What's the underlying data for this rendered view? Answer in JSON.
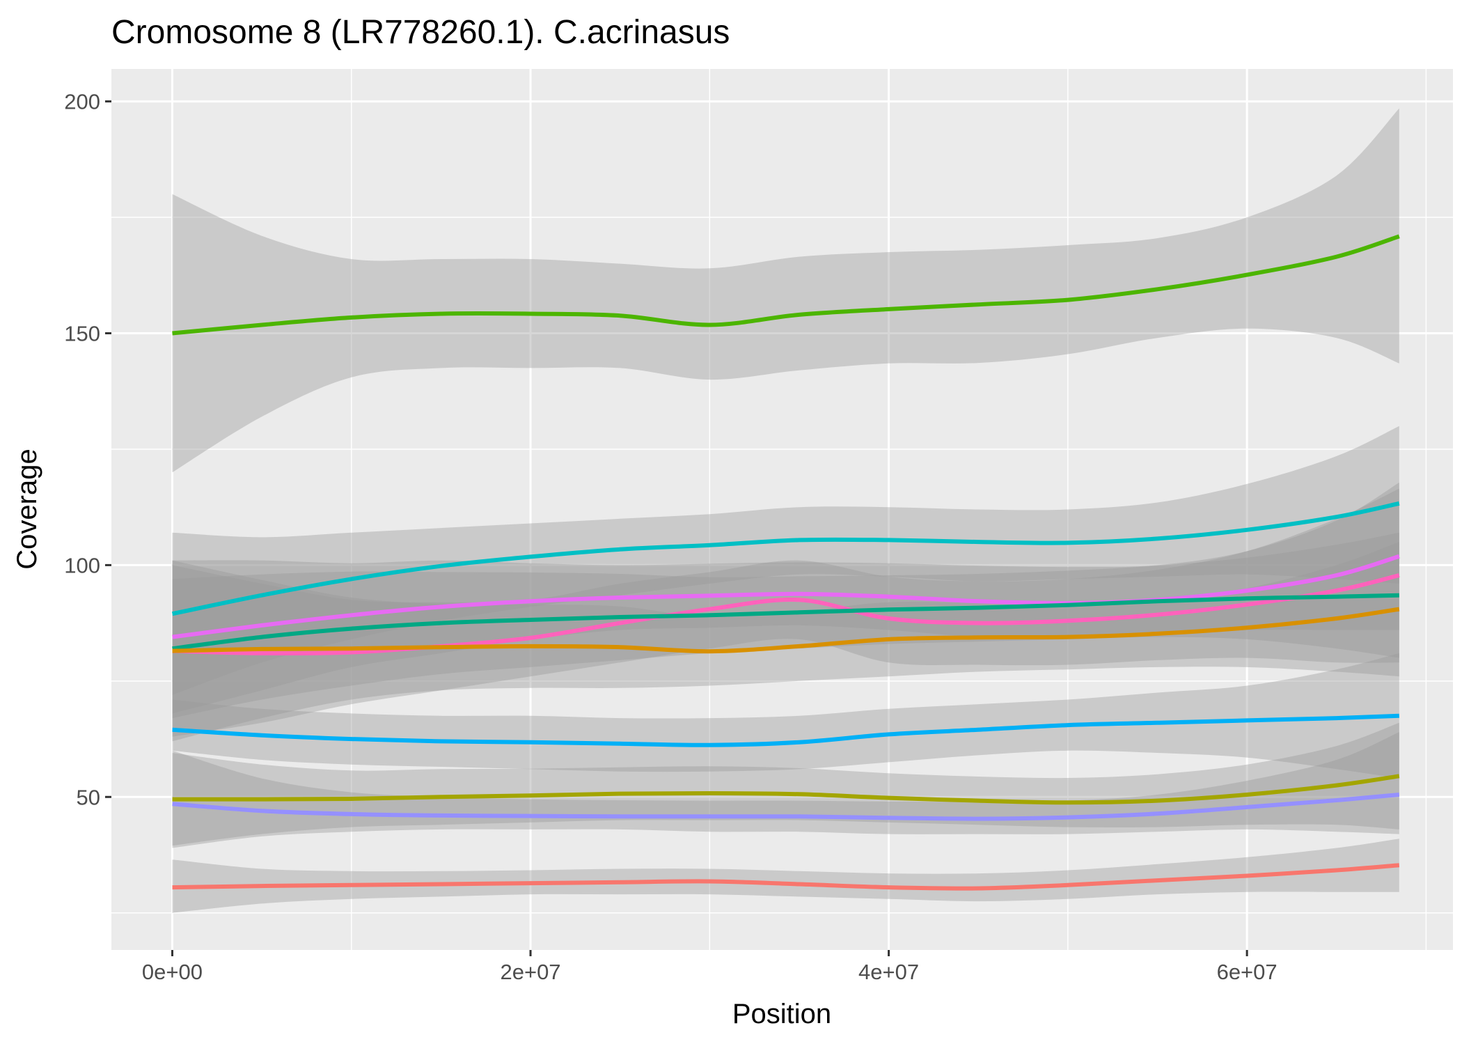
{
  "chart_data": {
    "type": "line",
    "title": "Cromosome 8 (LR778260.1). C.acrinasus",
    "xlabel": "Position",
    "ylabel": "Coverage",
    "xlim": [
      -3400000,
      71500000
    ],
    "ylim": [
      17,
      207
    ],
    "x_ticks": [
      0,
      20000000,
      40000000,
      60000000
    ],
    "x_tick_labels": [
      "0e+00",
      "2e+07",
      "4e+07",
      "6e+07"
    ],
    "y_ticks": [
      50,
      100,
      150,
      200
    ],
    "y_tick_labels": [
      "50",
      "100",
      "150",
      "200"
    ],
    "x_minor_ticks": [
      10000000,
      30000000,
      50000000,
      70000000
    ],
    "y_minor_ticks": [
      25,
      75,
      125,
      175
    ],
    "grid": true,
    "legend": "none",
    "x": [
      0,
      5000000,
      10000000,
      15000000,
      20000000,
      25000000,
      30000000,
      35000000,
      40000000,
      45000000,
      50000000,
      55000000,
      60000000,
      65000000,
      68500000
    ],
    "series": [
      {
        "color": "#4CB500",
        "values": [
          150,
          151.8,
          153.4,
          154.2,
          154.2,
          153.8,
          151.8,
          154,
          155.2,
          156.2,
          157.2,
          159.5,
          162.6,
          166.5,
          170.9
        ],
        "lower": [
          120,
          132,
          140.5,
          142.5,
          142.5,
          142.5,
          140,
          142,
          143.5,
          143.6,
          145.5,
          149,
          151,
          149,
          143.5
        ],
        "upper": [
          180,
          171,
          166,
          166,
          166,
          165,
          164,
          166.5,
          167.5,
          168,
          169,
          170.5,
          175,
          184,
          198.5
        ]
      },
      {
        "color": "#00BFC4",
        "values": [
          89.5,
          93.5,
          97,
          99.8,
          101.8,
          103.4,
          104.3,
          105.4,
          105.4,
          105,
          104.8,
          105.7,
          107.6,
          110.4,
          113.3
        ],
        "lower": [
          72,
          79,
          84,
          88,
          91,
          93.5,
          96,
          98,
          97.5,
          96.5,
          97,
          97.5,
          98,
          97,
          96
        ],
        "upper": [
          107,
          106,
          107,
          108,
          109,
          110,
          111,
          112.5,
          112.5,
          112,
          112,
          113.5,
          117.5,
          123.5,
          130
        ]
      },
      {
        "color": "#E76BF3",
        "values": [
          84.5,
          87,
          89.2,
          91,
          92.2,
          93,
          93.4,
          93.8,
          93.2,
          92.2,
          91.8,
          92.5,
          94.5,
          97.8,
          101.9
        ],
        "lower": [
          68,
          73,
          78,
          81,
          84,
          86,
          86.5,
          87,
          86,
          84.5,
          84,
          85,
          86,
          86,
          86
        ]
      },
      {
        "color": "#FF62BC",
        "values": [
          81.5,
          81,
          81.2,
          82.5,
          84.3,
          87.5,
          90.5,
          92.5,
          88.5,
          87.5,
          88,
          89.3,
          91.5,
          94.5,
          97.8
        ],
        "lower": [
          63,
          66,
          70,
          73,
          76,
          79,
          82,
          84,
          79,
          78.5,
          78.5,
          79.5,
          80,
          79,
          79
        ],
        "upper": [
          100,
          96,
          92.5,
          92,
          92.5,
          96,
          98.5,
          101,
          97.5,
          96.5,
          97,
          99,
          103,
          110,
          116.5
        ]
      },
      {
        "color": "#00A884",
        "values": [
          82,
          84.5,
          86.3,
          87.5,
          88.2,
          88.8,
          89.2,
          89.8,
          90.4,
          90.8,
          91.4,
          92.2,
          92.8,
          93.2,
          93.5
        ],
        "lower": [
          67,
          71,
          74,
          76.5,
          78,
          79.5,
          81,
          82,
          83,
          83.5,
          84,
          84.5,
          84,
          82,
          80
        ]
      },
      {
        "color": "#D89000",
        "values": [
          81.5,
          81.9,
          82,
          82.3,
          82.5,
          82.3,
          81.4,
          82.5,
          84,
          84.4,
          84.5,
          85.2,
          86.5,
          88.5,
          90.5
        ],
        "lower": [
          62,
          67,
          71,
          73,
          73.5,
          73.5,
          74,
          75,
          76,
          77,
          77.5,
          78,
          78,
          77,
          76
        ]
      },
      {
        "color": "#00B0F6",
        "values": [
          64.5,
          63.3,
          62.5,
          62,
          61.8,
          61.5,
          61.2,
          61.8,
          63.5,
          64.5,
          65.5,
          66,
          66.5,
          67,
          67.5
        ],
        "lower": [
          60,
          58,
          57,
          56.5,
          56,
          55.5,
          55.5,
          56,
          57.5,
          59,
          60,
          59.5,
          58.5,
          56,
          54
        ],
        "upper": [
          71,
          69,
          68,
          67.5,
          67.5,
          67,
          67,
          67.5,
          69,
          70,
          71,
          72.5,
          74,
          77.5,
          81
        ]
      },
      {
        "color": "#A3A500",
        "values": [
          49.5,
          49.5,
          49.6,
          50,
          50.3,
          50.7,
          50.8,
          50.6,
          49.8,
          49.2,
          48.8,
          49.2,
          50.5,
          52.5,
          54.5
        ],
        "lower": [
          39.5,
          42,
          43.5,
          44,
          44.5,
          45,
          45,
          45,
          44.5,
          44,
          43.5,
          43.5,
          44,
          44,
          43
        ]
      },
      {
        "color": "#9590FF",
        "values": [
          48.5,
          47,
          46.3,
          46,
          45.9,
          45.8,
          45.8,
          45.8,
          45.5,
          45.3,
          45.6,
          46.4,
          47.8,
          49.3,
          50.5
        ],
        "lower": [
          39,
          41.5,
          42.5,
          43,
          43,
          43,
          42.5,
          42.5,
          42,
          42,
          42,
          42.5,
          43,
          42.5,
          42
        ],
        "upper": [
          60,
          54,
          51,
          50,
          49.5,
          49.3,
          49.2,
          49.2,
          49,
          49,
          49.2,
          50.5,
          53.5,
          58,
          64
        ]
      },
      {
        "color": "#F8766D",
        "values": [
          30.5,
          30.8,
          31,
          31.2,
          31.4,
          31.6,
          31.8,
          31.2,
          30.5,
          30.3,
          31,
          32,
          33,
          34.2,
          35.3
        ],
        "lower": [
          25,
          27,
          28,
          28.5,
          29,
          29,
          29,
          28.5,
          28,
          27.5,
          28,
          29,
          29.5,
          29.5,
          29.5
        ],
        "upper": [
          36.5,
          34.5,
          34,
          34,
          34.2,
          34.5,
          34.5,
          34,
          33.5,
          33.5,
          34.2,
          35.5,
          37,
          39,
          41
        ]
      }
    ]
  }
}
